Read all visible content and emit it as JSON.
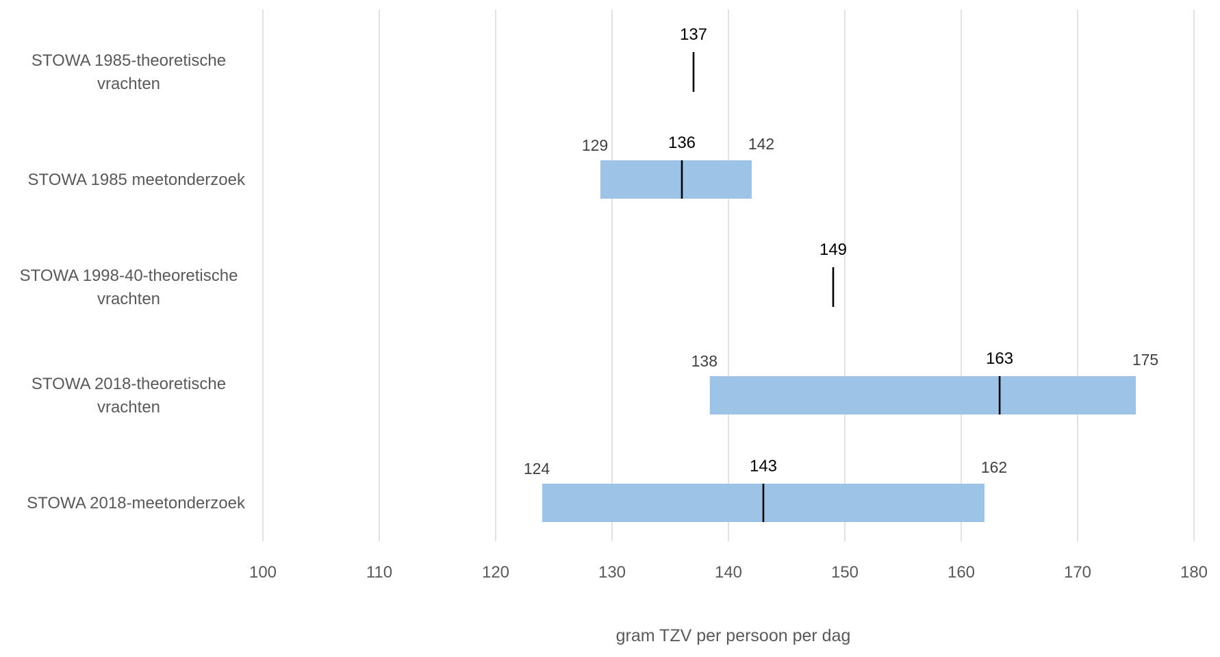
{
  "chart_data": {
    "type": "bar",
    "subtype": "floating-range",
    "orientation": "horizontal",
    "title": "",
    "xlabel": "gram TZV per persoon per dag",
    "ylabel": "",
    "xlim": [
      100,
      180
    ],
    "xticks": [
      100,
      110,
      120,
      130,
      140,
      150,
      160,
      170,
      180
    ],
    "grid": true,
    "legend": "none",
    "bar_color": "#9dc3e6",
    "marker_color": "#000000",
    "categories": [
      {
        "label_lines": [
          "STOWA 1985-theoretische",
          "vrachten"
        ],
        "low": null,
        "mid": 137,
        "high": null,
        "labels": {
          "low": "",
          "mid": "137",
          "high": ""
        }
      },
      {
        "label_lines": [
          "STOWA 1985 meetonderzoek"
        ],
        "low": 129,
        "mid": 136,
        "high": 142,
        "labels": {
          "low": "129",
          "mid": "136",
          "high": "142"
        }
      },
      {
        "label_lines": [
          "STOWA 1998-40-theoretische",
          "vrachten"
        ],
        "low": null,
        "mid": 149,
        "high": null,
        "labels": {
          "low": "",
          "mid": "149",
          "high": ""
        }
      },
      {
        "label_lines": [
          "STOWA 2018-theoretische",
          "vrachten"
        ],
        "low": 138.4,
        "mid": 163.3,
        "high": 175,
        "labels": {
          "low": "138",
          "mid": "163",
          "high": "175"
        }
      },
      {
        "label_lines": [
          "STOWA 2018-meetonderzoek"
        ],
        "low": 124,
        "mid": 143,
        "high": 162,
        "labels": {
          "low": "124",
          "mid": "143",
          "high": "162"
        }
      }
    ]
  }
}
